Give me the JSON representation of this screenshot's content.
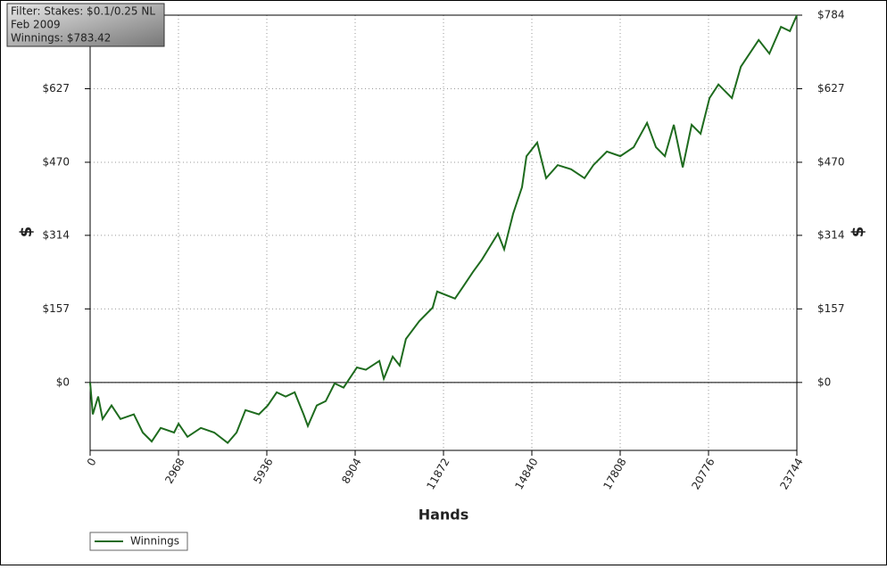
{
  "chart_data": {
    "type": "line",
    "annotations": [
      "Filter: Stakes: $0.1/0.25 NL",
      "Feb 2009",
      "Winnings: $783.42"
    ],
    "y_label": "$",
    "x_label": "Hands",
    "x": [
      0,
      90,
      270,
      420,
      720,
      1020,
      1470,
      1770,
      2070,
      2370,
      2820,
      2970,
      3270,
      3720,
      4170,
      4620,
      4920,
      5220,
      5670,
      5970,
      6270,
      6570,
      6870,
      7170,
      7315,
      7615,
      7915,
      8215,
      8515,
      8965,
      9265,
      9715,
      9865,
      10165,
      10400,
      10610,
      11060,
      11510,
      11660,
      12260,
      12560,
      12860,
      13160,
      13460,
      13700,
      13910,
      14210,
      14510,
      14660,
      15020,
      15320,
      15710,
      16160,
      16610,
      16910,
      17360,
      17810,
      18260,
      18710,
      19010,
      19310,
      19610,
      19910,
      20210,
      20510,
      20810,
      21110,
      21560,
      21860,
      22460,
      22820,
      23210,
      23510,
      23744
    ],
    "series": [
      {
        "name": "Winnings",
        "color": "#1e6b1e",
        "values": [
          0,
          -68,
          -30,
          -78,
          -49,
          -78,
          -68,
          -107,
          -126,
          -97,
          -107,
          -88,
          -116,
          -97,
          -107,
          -129,
          -107,
          -59,
          -68,
          -49,
          -21,
          -30,
          -21,
          -68,
          -93,
          -49,
          -40,
          -2,
          -11,
          32,
          27,
          46,
          8,
          55,
          36,
          93,
          131,
          160,
          194,
          179,
          207,
          236,
          262,
          293,
          318,
          284,
          360,
          417,
          483,
          512,
          436,
          464,
          455,
          436,
          464,
          493,
          483,
          502,
          554,
          502,
          483,
          550,
          459,
          550,
          531,
          607,
          636,
          607,
          674,
          731,
          702,
          759,
          750,
          784
        ]
      }
    ],
    "xlim": [
      0,
      23744
    ],
    "xticks": [
      0,
      2968,
      5936,
      8904,
      11872,
      14840,
      17808,
      20776,
      23744
    ],
    "ylim": [
      -145,
      784
    ],
    "yticks": [
      {
        "value": 0,
        "label": "$0"
      },
      {
        "value": 157,
        "label": "$157"
      },
      {
        "value": 314,
        "label": "$314"
      },
      {
        "value": 470,
        "label": "$470"
      },
      {
        "value": 627,
        "label": "$627"
      },
      {
        "value": 784,
        "label": "$784"
      }
    ],
    "grid": true
  }
}
